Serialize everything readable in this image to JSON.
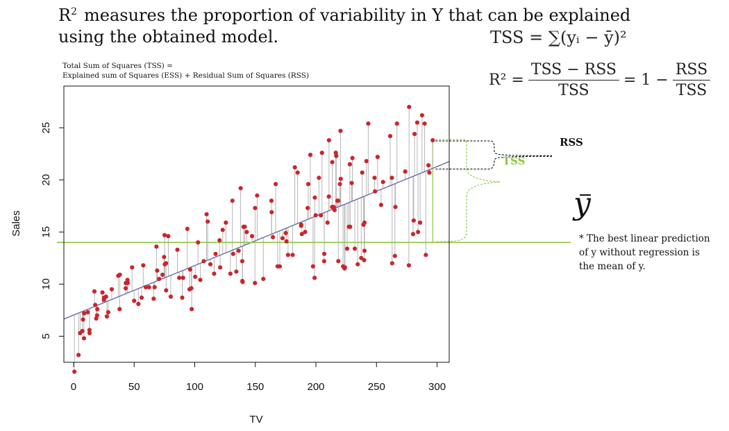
{
  "title": {
    "r_symbol": "R",
    "superscript": "2",
    "text_line1": "measures the proportion of variability in Y that can be explained",
    "text_line2": "using the obtained model."
  },
  "formulas": {
    "tss": "TSS = ∑(yᵢ − ȳ)²",
    "r2_lhs": "R² =",
    "r2_num": "TSS − RSS",
    "r2_den": "TSS",
    "r2_mid": "= 1 −",
    "r2_num2": "RSS",
    "r2_den2": "TSS"
  },
  "decomposition_note": {
    "line1": "Total Sum of Squares (TSS) =",
    "line2": "Explained sum of Squares (ESS) + Residual Sum of Squares (RSS)"
  },
  "annotations": {
    "rss": "RSS",
    "tss": "TSS",
    "ybar": "y",
    "footnote": "* The best linear prediction of y without regression is the mean of y."
  },
  "colors": {
    "points": "#c8262c",
    "regression_line": "#6b6ba8",
    "mean_line": "#8cc63f",
    "residual_segments": "#b5b5b5",
    "tss_brace": "#8cc63f",
    "rss_brace": "#111111"
  },
  "chart_data": {
    "type": "scatter",
    "xlabel": "TV",
    "ylabel": "Sales",
    "xlim": [
      -8,
      310
    ],
    "ylim": [
      2.5,
      29
    ],
    "x_ticks": [
      0,
      50,
      100,
      150,
      200,
      250,
      300
    ],
    "y_ticks": [
      5,
      10,
      15,
      20,
      25
    ],
    "regression": {
      "intercept": 7.03,
      "slope": 0.0475
    },
    "mean_y": 14.0,
    "residual_segments": true,
    "grid": false,
    "points": [
      [
        0.7,
        1.6
      ],
      [
        4.1,
        3.2
      ],
      [
        5.4,
        5.3
      ],
      [
        7.3,
        5.5
      ],
      [
        7.8,
        6.6
      ],
      [
        8.6,
        4.8
      ],
      [
        8.7,
        7.2
      ],
      [
        11.7,
        7.3
      ],
      [
        13.1,
        5.6
      ],
      [
        13.2,
        5.3
      ],
      [
        17.2,
        9.3
      ],
      [
        17.9,
        8.0
      ],
      [
        18.7,
        6.7
      ],
      [
        19.4,
        7.0
      ],
      [
        19.6,
        7.6
      ],
      [
        23.8,
        9.2
      ],
      [
        25.0,
        8.5
      ],
      [
        25.1,
        8.7
      ],
      [
        26.8,
        8.8
      ],
      [
        27.5,
        6.9
      ],
      [
        28.6,
        7.3
      ],
      [
        31.5,
        9.5
      ],
      [
        36.9,
        10.8
      ],
      [
        38.0,
        7.6
      ],
      [
        38.2,
        10.9
      ],
      [
        43.0,
        9.6
      ],
      [
        43.1,
        10.1
      ],
      [
        44.5,
        10.4
      ],
      [
        44.7,
        10.1
      ],
      [
        48.3,
        11.6
      ],
      [
        50.0,
        8.4
      ],
      [
        53.5,
        8.1
      ],
      [
        56.2,
        8.7
      ],
      [
        57.5,
        11.8
      ],
      [
        59.6,
        9.7
      ],
      [
        62.3,
        9.7
      ],
      [
        66.1,
        8.6
      ],
      [
        66.9,
        9.7
      ],
      [
        68.4,
        13.6
      ],
      [
        69.0,
        11.3
      ],
      [
        70.6,
        10.5
      ],
      [
        73.4,
        10.9
      ],
      [
        74.7,
        12.6
      ],
      [
        75.1,
        14.7
      ],
      [
        75.3,
        11.9
      ],
      [
        76.3,
        12.0
      ],
      [
        76.4,
        9.4
      ],
      [
        78.2,
        14.6
      ],
      [
        80.2,
        8.8
      ],
      [
        85.7,
        13.3
      ],
      [
        87.2,
        10.6
      ],
      [
        89.7,
        8.7
      ],
      [
        90.4,
        10.6
      ],
      [
        93.9,
        15.3
      ],
      [
        95.7,
        9.5
      ],
      [
        96.2,
        11.4
      ],
      [
        97.2,
        9.6
      ],
      [
        97.5,
        7.6
      ],
      [
        100.4,
        10.7
      ],
      [
        102.7,
        14.0
      ],
      [
        104.6,
        10.4
      ],
      [
        107.4,
        12.2
      ],
      [
        109.8,
        16.7
      ],
      [
        110.7,
        16.0
      ],
      [
        112.9,
        11.9
      ],
      [
        116.0,
        11.0
      ],
      [
        117.2,
        12.9
      ],
      [
        120.5,
        14.2
      ],
      [
        121.0,
        11.6
      ],
      [
        123.1,
        15.2
      ],
      [
        125.7,
        15.9
      ],
      [
        129.4,
        11.0
      ],
      [
        131.1,
        18.0
      ],
      [
        131.7,
        12.9
      ],
      [
        134.3,
        11.2
      ],
      [
        136.2,
        13.2
      ],
      [
        137.9,
        19.2
      ],
      [
        139.2,
        12.2
      ],
      [
        139.3,
        10.3
      ],
      [
        139.5,
        10.2
      ],
      [
        140.3,
        15.5
      ],
      [
        141.3,
        15.5
      ],
      [
        142.9,
        15.0
      ],
      [
        147.3,
        14.6
      ],
      [
        149.7,
        10.1
      ],
      [
        149.8,
        17.3
      ],
      [
        151.5,
        18.5
      ],
      [
        156.6,
        10.5
      ],
      [
        163.3,
        18.0
      ],
      [
        163.5,
        16.9
      ],
      [
        164.5,
        14.5
      ],
      [
        166.8,
        19.6
      ],
      [
        168.4,
        11.7
      ],
      [
        170.2,
        11.7
      ],
      [
        172.5,
        14.4
      ],
      [
        175.1,
        14.9
      ],
      [
        175.7,
        14.1
      ],
      [
        177.0,
        12.8
      ],
      [
        180.8,
        12.8
      ],
      [
        182.6,
        21.2
      ],
      [
        184.9,
        20.7
      ],
      [
        187.8,
        15.6
      ],
      [
        187.9,
        15.7
      ],
      [
        188.4,
        14.8
      ],
      [
        191.1,
        15.0
      ],
      [
        193.2,
        17.3
      ],
      [
        193.7,
        19.6
      ],
      [
        195.4,
        22.4
      ],
      [
        197.6,
        11.7
      ],
      [
        198.9,
        10.6
      ],
      [
        199.1,
        18.3
      ],
      [
        199.8,
        16.6
      ],
      [
        202.5,
        20.2
      ],
      [
        204.1,
        16.6
      ],
      [
        205.0,
        22.6
      ],
      [
        206.8,
        12.2
      ],
      [
        206.9,
        12.9
      ],
      [
        209.6,
        15.9
      ],
      [
        210.7,
        18.4
      ],
      [
        210.8,
        23.8
      ],
      [
        213.4,
        17.4
      ],
      [
        213.5,
        21.7
      ],
      [
        214.7,
        17.4
      ],
      [
        215.4,
        17.1
      ],
      [
        216.4,
        22.6
      ],
      [
        216.8,
        22.3
      ],
      [
        217.7,
        18.0
      ],
      [
        218.4,
        18.0
      ],
      [
        218.5,
        12.2
      ],
      [
        219.8,
        19.6
      ],
      [
        220.3,
        24.7
      ],
      [
        220.5,
        20.1
      ],
      [
        222.4,
        11.7
      ],
      [
        223.6,
        11.5
      ],
      [
        224.0,
        11.6
      ],
      [
        225.8,
        13.4
      ],
      [
        227.2,
        15.5
      ],
      [
        228.0,
        21.5
      ],
      [
        228.3,
        15.5
      ],
      [
        229.5,
        19.7
      ],
      [
        230.1,
        22.1
      ],
      [
        232.1,
        13.4
      ],
      [
        234.5,
        11.9
      ],
      [
        237.4,
        12.5
      ],
      [
        238.2,
        20.7
      ],
      [
        239.3,
        15.7
      ],
      [
        239.8,
        12.3
      ],
      [
        240.1,
        13.2
      ],
      [
        240.1,
        15.9
      ],
      [
        241.7,
        21.8
      ],
      [
        243.2,
        25.4
      ],
      [
        248.4,
        20.2
      ],
      [
        248.8,
        18.9
      ],
      [
        250.9,
        22.2
      ],
      [
        253.8,
        17.6
      ],
      [
        255.4,
        19.8
      ],
      [
        261.3,
        24.2
      ],
      [
        262.7,
        20.2
      ],
      [
        262.9,
        12.0
      ],
      [
        265.2,
        12.7
      ],
      [
        265.6,
        17.4
      ],
      [
        266.9,
        25.4
      ],
      [
        273.7,
        20.8
      ],
      [
        276.7,
        11.8
      ],
      [
        276.9,
        27.0
      ],
      [
        280.2,
        14.8
      ],
      [
        280.7,
        16.1
      ],
      [
        281.4,
        24.4
      ],
      [
        283.6,
        25.5
      ],
      [
        284.3,
        15.0
      ],
      [
        286.0,
        15.9
      ],
      [
        287.6,
        26.2
      ],
      [
        289.7,
        25.4
      ],
      [
        290.7,
        12.8
      ],
      [
        292.9,
        21.4
      ],
      [
        293.6,
        20.7
      ],
      [
        296.4,
        23.8
      ]
    ]
  }
}
